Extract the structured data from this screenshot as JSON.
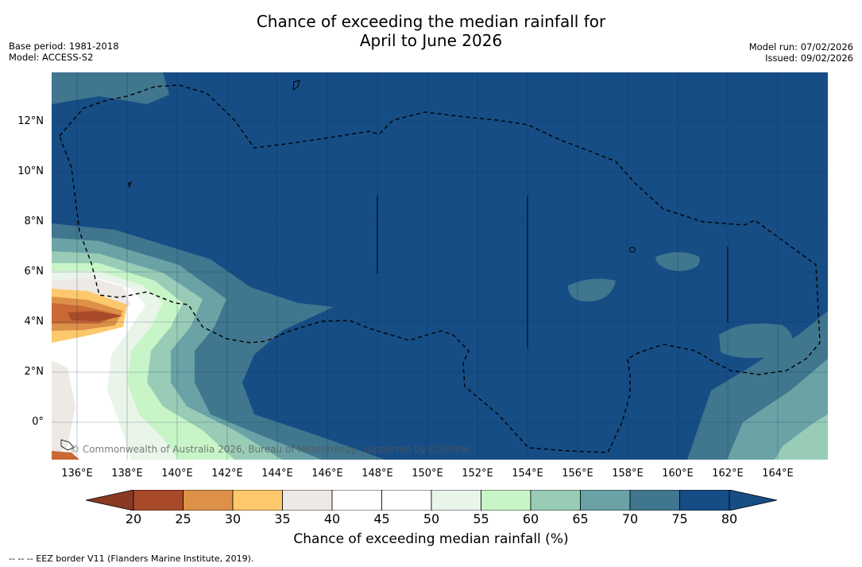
{
  "header": {
    "title_line1": "Chance of exceeding the median rainfall for",
    "title_line2": "April to June 2026",
    "base_period": "Base period: 1981-2018",
    "model": "Model: ACCESS-S2",
    "model_run": "Model run: 07/02/2026",
    "issued": "Issued: 09/02/2026"
  },
  "map": {
    "lon_range": [
      135,
      166
    ],
    "lat_range": [
      -1.5,
      14
    ],
    "x_ticks": [
      "136°E",
      "138°E",
      "140°E",
      "142°E",
      "144°E",
      "146°E",
      "148°E",
      "150°E",
      "152°E",
      "154°E",
      "156°E",
      "158°E",
      "160°E",
      "162°E",
      "164°E"
    ],
    "y_ticks": [
      "12°N",
      "10°N",
      "8°N",
      "6°N",
      "4°N",
      "2°N",
      "0°"
    ],
    "copyright": "© Commonwealth of Australia 2026, Bureau of Meteorology, supported by COSPPac"
  },
  "colorbar": {
    "title": "Chance of exceeding median rainfall (%)",
    "labels": [
      "20",
      "25",
      "30",
      "35",
      "40",
      "45",
      "50",
      "55",
      "60",
      "65",
      "70",
      "75",
      "80"
    ],
    "colors": [
      "#a84a2a",
      "#c96934",
      "#dd9048",
      "#fcc86b",
      "#ede9e5",
      "#ffffff",
      "#ffffff",
      "#eaf5ea",
      "#c8f5c8",
      "#98ccb6",
      "#6aa2a6",
      "#40768e",
      "#164d85"
    ],
    "under_color": "#8a3a22",
    "over_color": "#164d85"
  },
  "footer": {
    "legend": "-- -- -- EEZ border V11 (Flanders Marine Institute, 2019)."
  }
}
